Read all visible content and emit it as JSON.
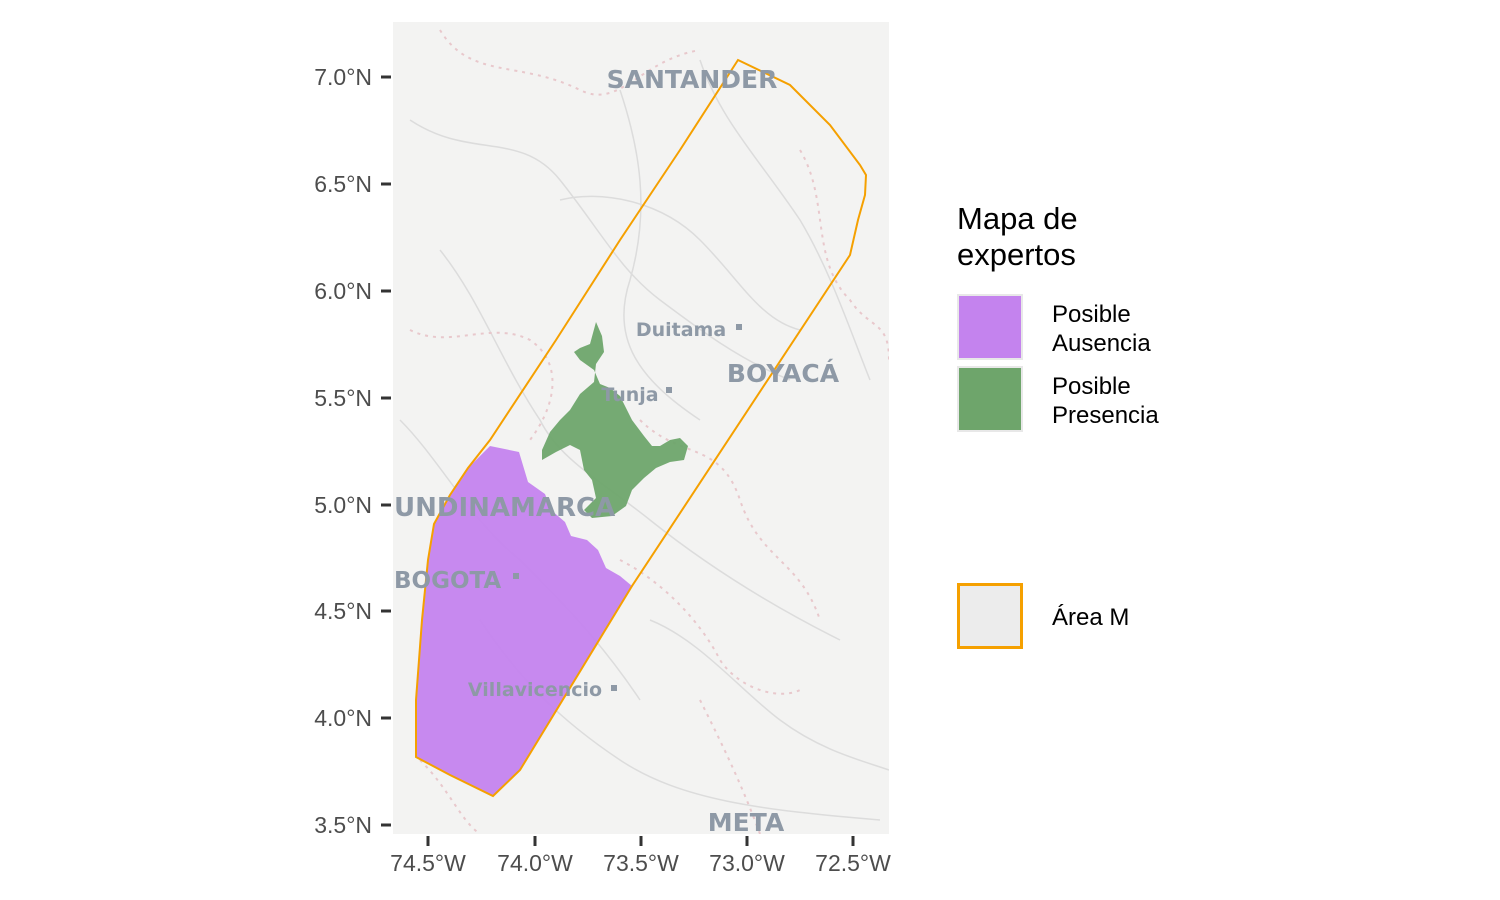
{
  "map": {
    "x_ticks": [
      "74.5°W",
      "74.0°W",
      "73.5°W",
      "73.0°W",
      "72.5°W"
    ],
    "y_ticks": [
      "7.0°N",
      "6.5°N",
      "6.0°N",
      "5.5°N",
      "5.0°N",
      "4.5°N",
      "4.0°N",
      "3.5°N"
    ],
    "place_labels": {
      "santander": "SANTANDER",
      "duitama": "Duitama",
      "boyaca": "BOYACÁ",
      "tunja": "Tunja",
      "cundinamarca": "UNDINAMARCA",
      "bogota": "BOGOTA",
      "villavicencio": "Villavicencio",
      "meta": "META"
    },
    "colors": {
      "basemap": "#f3f3f2",
      "ausencia": "#c483ee",
      "presencia": "#6ea56b",
      "area_m": "#f5a000"
    }
  },
  "legend": {
    "title": "Mapa de\nexpertos",
    "items": [
      {
        "label": "Posible\nAusencia"
      },
      {
        "label": "Posible\nPresencia"
      }
    ],
    "area_label": "Área M"
  }
}
